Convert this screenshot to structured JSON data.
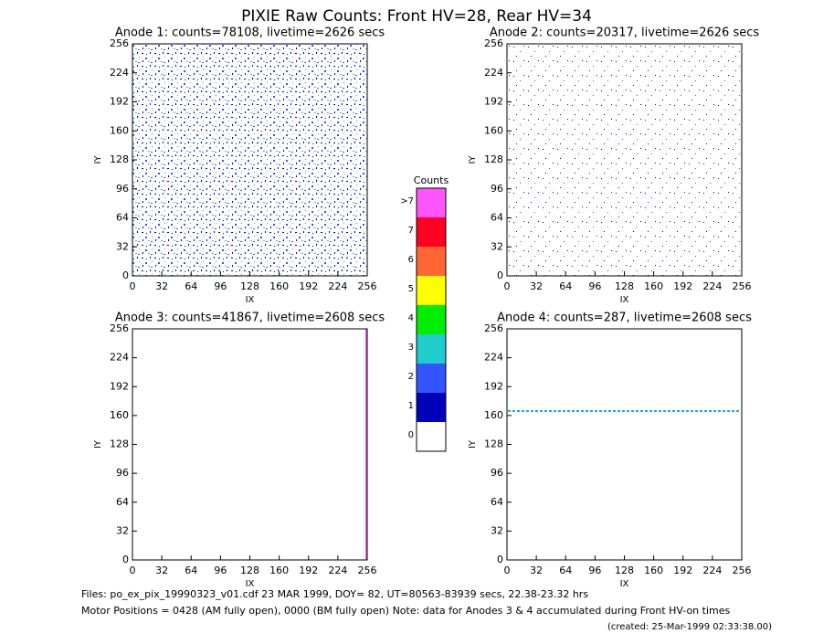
{
  "title": "PIXIE Raw Counts:  Front HV=28, Rear HV=34",
  "panels": [
    {
      "title": "Anode 1: counts=78108, livetime=2626 secs",
      "xlabel": "IX",
      "ylabel": "IY",
      "xlim": [
        0,
        256
      ],
      "ylim": [
        0,
        256
      ],
      "xticks": [
        0,
        32,
        64,
        96,
        128,
        160,
        192,
        224,
        256
      ],
      "yticks": [
        0,
        32,
        64,
        96,
        128,
        160,
        192,
        224,
        256
      ]
    },
    {
      "title": "Anode 2: counts=20317, livetime=2626 secs",
      "xlabel": "IX",
      "ylabel": "IY",
      "xlim": [
        0,
        256
      ],
      "ylim": [
        0,
        256
      ],
      "xticks": [
        0,
        32,
        64,
        96,
        128,
        160,
        192,
        224,
        256
      ],
      "yticks": [
        0,
        32,
        64,
        96,
        128,
        160,
        192,
        224,
        256
      ]
    },
    {
      "title": "Anode 3: counts=41867, livetime=2608 secs",
      "xlabel": "IX",
      "ylabel": "IY",
      "xlim": [
        0,
        256
      ],
      "ylim": [
        0,
        256
      ],
      "xticks": [
        0,
        32,
        64,
        96,
        128,
        160,
        192,
        224,
        256
      ],
      "yticks": [
        0,
        32,
        64,
        96,
        128,
        160,
        192,
        224,
        256
      ]
    },
    {
      "title": "Anode 4: counts=287, livetime=2608 secs",
      "xlabel": "IX",
      "ylabel": "IY",
      "xlim": [
        0,
        256
      ],
      "ylim": [
        0,
        256
      ],
      "xticks": [
        0,
        32,
        64,
        96,
        128,
        160,
        192,
        224,
        256
      ],
      "yticks": [
        0,
        32,
        64,
        96,
        128,
        160,
        192,
        224,
        256
      ]
    }
  ],
  "colorbar": {
    "title": "Counts",
    "levels": [
      {
        "label": ">7",
        "color": "#ff55ff"
      },
      {
        "label": "7",
        "color": "#ff0022"
      },
      {
        "label": "6",
        "color": "#ff6633"
      },
      {
        "label": "5",
        "color": "#ffff00"
      },
      {
        "label": "4",
        "color": "#00ee00"
      },
      {
        "label": "3",
        "color": "#22cccc"
      },
      {
        "label": "2",
        "color": "#3355ff"
      },
      {
        "label": "1",
        "color": "#0000bb"
      },
      {
        "label": "0",
        "color": "#ffffff"
      }
    ]
  },
  "footer": [
    "Files: po_ex_pix_19990323_v01.cdf    23 MAR 1999, DOY= 82, UT=80563-83939 secs, 22.38-23.32 hrs",
    "Motor Positions = 0428 (AM fully open), 0000 (BM fully open)    Note: data for Anodes 3 & 4 accumulated during Front HV-on times",
    "(created: 25-Mar-1999 02:33:38.00)"
  ]
}
